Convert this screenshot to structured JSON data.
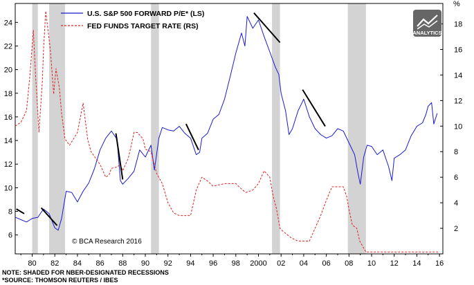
{
  "chart_data": {
    "type": "line",
    "x_axis": {
      "range": [
        1978.5,
        2016.3
      ],
      "ticks": [
        1980,
        1982,
        1984,
        1986,
        1988,
        1990,
        1992,
        1994,
        1996,
        1998,
        2000,
        2002,
        2004,
        2006,
        2008,
        2010,
        2012,
        2014,
        2016
      ],
      "tick_labels": [
        "80",
        "82",
        "84",
        "86",
        "88",
        "90",
        "92",
        "94",
        "96",
        "98",
        "2000",
        "02",
        "04",
        "06",
        "08",
        "10",
        "12",
        "14",
        "16"
      ]
    },
    "y_left": {
      "range": [
        4.4,
        25.6
      ],
      "ticks": [
        6,
        8,
        10,
        12,
        14,
        16,
        18,
        20,
        22,
        24
      ]
    },
    "y_right": {
      "unit": "%",
      "range": [
        0,
        19.6
      ],
      "ticks": [
        2,
        4,
        6,
        8,
        10,
        12,
        14,
        16,
        18
      ]
    },
    "recessions": [
      [
        1980.0,
        1980.5
      ],
      [
        1981.5,
        1982.9
      ],
      [
        1990.5,
        1991.2
      ],
      [
        2001.2,
        2001.9
      ],
      [
        2007.9,
        2009.5
      ]
    ],
    "series": [
      {
        "name": "U.S. S&P 500 FORWARD P/E* (LS)",
        "axis": "left",
        "color": "#1a1ad0",
        "style": "solid",
        "x": [
          1978.5,
          1979.0,
          1979.5,
          1980.0,
          1980.5,
          1981.0,
          1981.5,
          1982.0,
          1982.3,
          1982.6,
          1983.0,
          1983.5,
          1984.0,
          1984.5,
          1985.0,
          1985.5,
          1986.0,
          1986.5,
          1987.0,
          1987.5,
          1987.8,
          1988.0,
          1988.5,
          1989.0,
          1989.5,
          1990.0,
          1990.5,
          1990.8,
          1991.2,
          1991.5,
          1992.0,
          1992.5,
          1993.0,
          1993.5,
          1994.0,
          1994.5,
          1994.8,
          1995.0,
          1995.5,
          1996.0,
          1996.5,
          1997.0,
          1997.5,
          1998.0,
          1998.5,
          1998.8,
          1999.0,
          1999.5,
          2000.0,
          2000.5,
          2001.0,
          2001.5,
          2001.8,
          2002.0,
          2002.4,
          2002.7,
          2003.0,
          2003.5,
          2004.0,
          2004.5,
          2005.0,
          2005.5,
          2006.0,
          2006.5,
          2007.0,
          2007.5,
          2008.0,
          2008.5,
          2008.8,
          2009.0,
          2009.3,
          2009.6,
          2010.0,
          2010.5,
          2011.0,
          2011.5,
          2011.8,
          2012.0,
          2012.5,
          2013.0,
          2013.5,
          2014.0,
          2014.5,
          2014.8,
          2015.0,
          2015.3,
          2015.5,
          2015.8
        ],
        "values": [
          7.5,
          7.3,
          7.1,
          7.4,
          7.5,
          8.2,
          7.8,
          6.6,
          6.4,
          7.4,
          9.7,
          9.6,
          8.8,
          9.7,
          10.4,
          11.6,
          13.2,
          14.2,
          14.8,
          14.1,
          10.6,
          10.3,
          10.8,
          11.4,
          13.2,
          12.6,
          13.6,
          11.5,
          14.2,
          15.1,
          14.9,
          14.8,
          15.2,
          14.6,
          14.2,
          12.8,
          13.0,
          14.2,
          14.6,
          15.8,
          16.2,
          17.5,
          19.4,
          21.4,
          23.1,
          22.0,
          24.5,
          23.5,
          24.2,
          22.8,
          21.5,
          20.2,
          19.6,
          18.0,
          16.5,
          14.5,
          15.0,
          16.5,
          17.5,
          16.0,
          15.0,
          14.5,
          14.2,
          14.4,
          15.0,
          14.8,
          13.8,
          12.8,
          11.2,
          10.3,
          12.6,
          13.6,
          13.5,
          12.8,
          13.2,
          11.8,
          10.6,
          12.5,
          12.8,
          13.2,
          14.4,
          15.2,
          15.5,
          16.2,
          16.9,
          17.2,
          15.4,
          16.3
        ]
      },
      {
        "name": "FED FUNDS TARGET RATE (RS)",
        "axis": "right",
        "color": "#e02020",
        "style": "dashed",
        "x": [
          1978.5,
          1979.0,
          1979.5,
          1979.8,
          1980.1,
          1980.3,
          1980.6,
          1980.9,
          1981.0,
          1981.2,
          1981.4,
          1981.6,
          1981.9,
          1982.1,
          1982.4,
          1982.6,
          1982.9,
          1983.3,
          1984.0,
          1984.5,
          1984.9,
          1985.2,
          1986.0,
          1986.5,
          1986.8,
          1987.0,
          1987.5,
          1987.8,
          1988.0,
          1988.5,
          1989.0,
          1989.3,
          1989.8,
          1990.0,
          1990.5,
          1991.0,
          1991.5,
          1992.0,
          1992.5,
          1993.0,
          1993.5,
          1994.0,
          1994.5,
          1995.0,
          1995.5,
          1996.0,
          1997.0,
          1998.0,
          1998.6,
          1998.9,
          1999.5,
          2000.0,
          2000.5,
          2001.0,
          2001.3,
          2001.6,
          2001.9,
          2002.2,
          2002.9,
          2003.5,
          2004.5,
          2005.0,
          2005.5,
          2006.0,
          2006.5,
          2007.0,
          2007.5,
          2007.8,
          2008.0,
          2008.3,
          2008.7,
          2008.95,
          2009.5,
          2015.9
        ],
        "values": [
          10.0,
          10.3,
          11.2,
          14.0,
          17.5,
          14.0,
          9.5,
          13.5,
          16.0,
          19.0,
          17.5,
          16.0,
          12.5,
          14.5,
          13.0,
          11.0,
          9.0,
          8.5,
          9.5,
          11.8,
          9.0,
          8.0,
          7.0,
          6.0,
          6.2,
          6.7,
          6.8,
          7.0,
          6.5,
          7.5,
          9.5,
          9.5,
          9.0,
          8.2,
          8.0,
          6.3,
          5.5,
          4.0,
          3.2,
          3.0,
          3.0,
          3.0,
          5.0,
          6.0,
          5.7,
          5.3,
          5.5,
          5.5,
          5.0,
          4.8,
          5.0,
          5.5,
          6.5,
          6.0,
          4.5,
          3.5,
          2.0,
          1.75,
          1.25,
          1.0,
          1.0,
          2.0,
          3.0,
          4.2,
          5.25,
          5.25,
          5.25,
          4.5,
          3.5,
          2.25,
          2.0,
          1.0,
          0.15,
          0.15
        ]
      }
    ],
    "trend_lines": [
      [
        [
          1978.6,
          8.2
        ],
        [
          1979.3,
          7.8
        ]
      ],
      [
        [
          1980.8,
          8.3
        ],
        [
          1982.2,
          6.8
        ]
      ],
      [
        [
          1987.4,
          14.6
        ],
        [
          1988.0,
          10.7
        ]
      ],
      [
        [
          1993.6,
          15.4
        ],
        [
          1994.7,
          13.2
        ]
      ],
      [
        [
          1999.6,
          24.8
        ],
        [
          2001.9,
          22.3
        ]
      ],
      [
        [
          2003.9,
          18.3
        ],
        [
          2005.9,
          15.2
        ]
      ]
    ],
    "legend": {
      "placement": "top-left"
    }
  },
  "labels": {
    "legend_pe": "U.S. S&P 500 FORWARD P/E* (LS)",
    "legend_fed": "FED FUNDS TARGET RATE (RS)",
    "right_unit": "%",
    "credit": "© BCA Research 2016",
    "note_1": "NOTE: SHADED FOR NBER-DESIGNATED RECESSIONS",
    "note_2": "*SOURCE: THOMSON REUTERS / IBES",
    "logo_text": "ANALYTICS"
  },
  "colors": {
    "recession_shade": "#d3d3d3",
    "pe_line": "#1a1ad0",
    "fed_line": "#e02020",
    "trend": "#000000",
    "logo_bg": "#666666"
  }
}
